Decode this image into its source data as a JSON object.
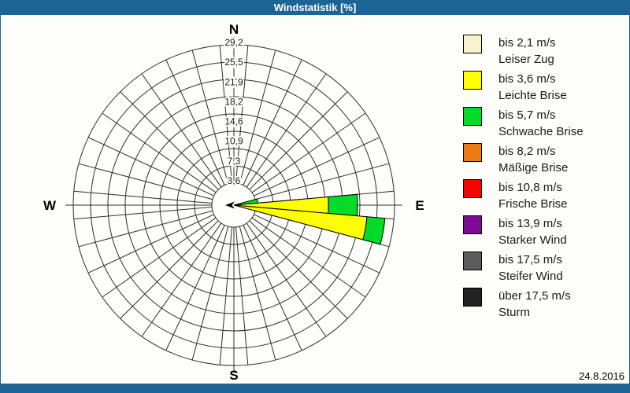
{
  "window": {
    "title": "Windstatistik [%]",
    "date": "24.8.2016",
    "titlebar_color": "#1C6396"
  },
  "chart_data": {
    "type": "wind-rose",
    "title": "Windstatistik [%]",
    "unit": "%",
    "sector_width_deg": 10,
    "num_sectors": 36,
    "grid": {
      "rings": 8,
      "spokes_every_deg": 10,
      "grid_on": true
    },
    "radial_axis": {
      "max": 29.2,
      "ring_step": 3.65,
      "ring_labels": [
        "3,6",
        "7,3",
        "10,9",
        "14,6",
        "18,2",
        "21,9",
        "25,5",
        "29,2"
      ]
    },
    "compass": {
      "n": "N",
      "e": "E",
      "s": "S",
      "w": "W"
    },
    "speed_classes": [
      {
        "range": "bis 2,1 m/s",
        "name": "Leiser Zug",
        "color": "#F8F2CE"
      },
      {
        "range": "bis 3,6 m/s",
        "name": "Leichte Brise",
        "color": "#FFFF00"
      },
      {
        "range": "bis 5,7 m/s",
        "name": "Schwache Brise",
        "color": "#00DC28"
      },
      {
        "range": "bis 8,2 m/s",
        "name": "Mäßige Brise",
        "color": "#EE7A16"
      },
      {
        "range": "bis 10,8 m/s",
        "name": "Frische Brise",
        "color": "#F80400"
      },
      {
        "range": "bis 13,9 m/s",
        "name": "Starker Wind",
        "color": "#7E0A94"
      },
      {
        "range": "bis 17,5 m/s",
        "name": "Steifer Wind",
        "color": "#5C5C5C"
      },
      {
        "range": "über 17,5 m/s",
        "name": "Sturm",
        "color": "#222222"
      }
    ],
    "sectors": [
      {
        "direction_deg": 80,
        "segments": [
          {
            "class": 2,
            "value": 0.4
          }
        ]
      },
      {
        "direction_deg": 90,
        "segments": [
          {
            "class": 1,
            "value": 15.3
          },
          {
            "class": 2,
            "value": 6.1
          }
        ]
      },
      {
        "direction_deg": 100,
        "segments": [
          {
            "class": 1,
            "value": 23.5
          },
          {
            "class": 2,
            "value": 3.8
          }
        ]
      }
    ],
    "center_marker": {
      "shape": "west-pointing-arrow",
      "color": "#000000"
    },
    "legend_position": "right"
  }
}
